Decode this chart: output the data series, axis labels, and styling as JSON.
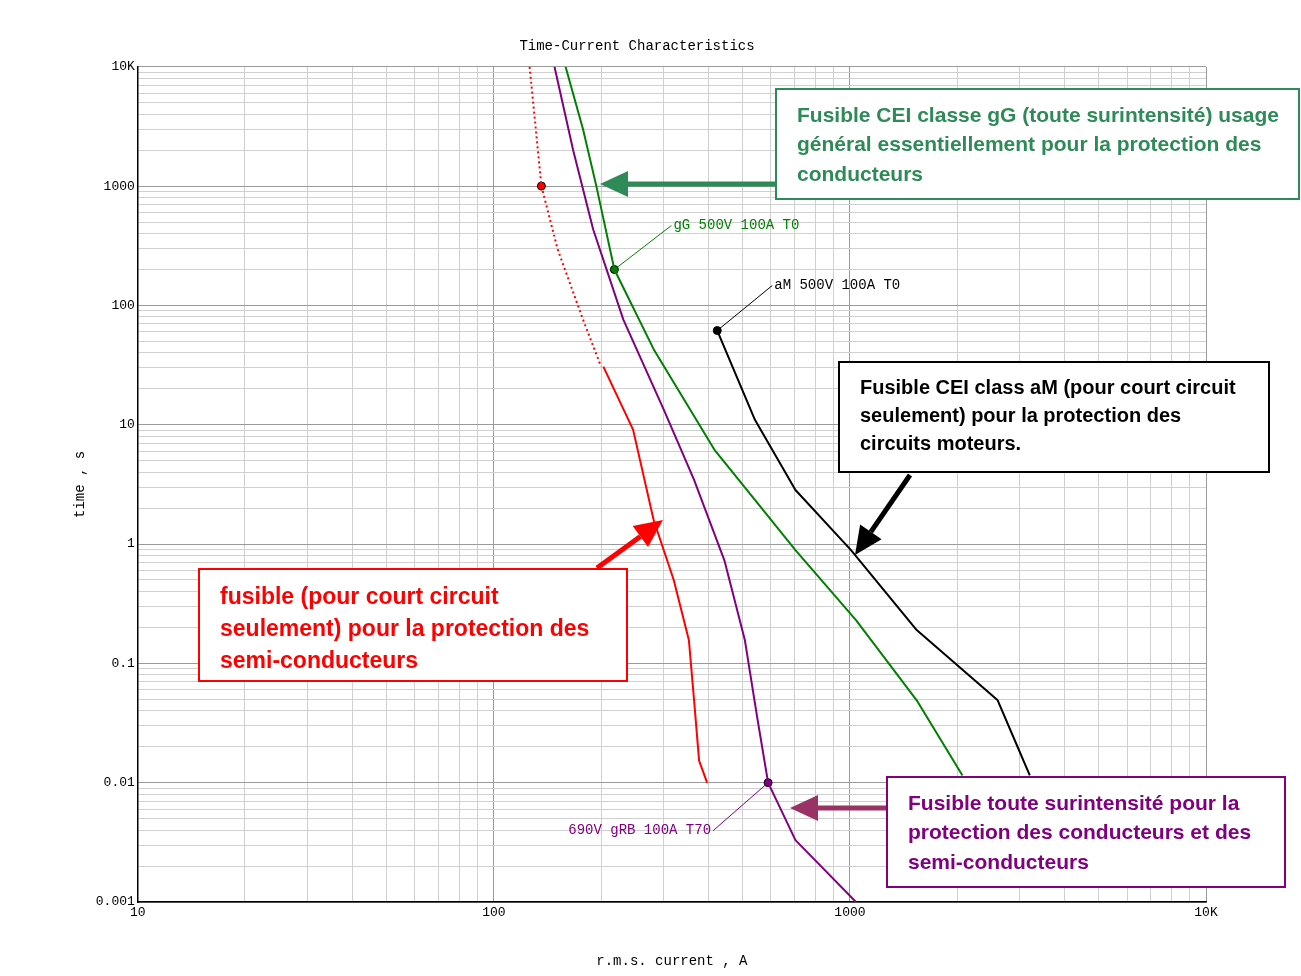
{
  "chart_data": {
    "type": "line",
    "title": "Time-Current Characteristics",
    "xlabel": "r.m.s. current , A",
    "ylabel": "time , s",
    "log": "xy",
    "grid": true,
    "xlim": [
      10,
      10000
    ],
    "ylim": [
      0.001,
      10000
    ],
    "xticks": [
      10,
      {
        "value": 20,
        "label": null
      },
      {
        "value": 30,
        "label": null
      },
      {
        "value": 40,
        "label": null
      },
      {
        "value": 50,
        "label": null
      },
      {
        "value": 60,
        "label": null
      },
      {
        "value": 70,
        "label": null
      },
      {
        "value": 80,
        "label": null
      },
      {
        "value": 90,
        "label": null
      },
      100,
      {
        "value": 200,
        "label": null
      },
      {
        "value": 300,
        "label": null
      },
      {
        "value": 400,
        "label": null
      },
      {
        "value": 500,
        "label": null
      },
      {
        "value": 600,
        "label": null
      },
      {
        "value": 700,
        "label": null
      },
      {
        "value": 800,
        "label": null
      },
      {
        "value": 900,
        "label": null
      },
      1000,
      {
        "value": 2000,
        "label": null
      },
      {
        "value": 3000,
        "label": null
      },
      {
        "value": 4000,
        "label": null
      },
      {
        "value": 5000,
        "label": null
      },
      {
        "value": 6000,
        "label": null
      },
      {
        "value": 7000,
        "label": null
      },
      {
        "value": 8000,
        "label": null
      },
      {
        "value": 9000,
        "label": null
      },
      {
        "value": 10000,
        "label": "10K"
      }
    ],
    "yticks": [
      0.001,
      {
        "value": 0.002,
        "label": null
      },
      {
        "value": 0.003,
        "label": null
      },
      {
        "value": 0.004,
        "label": null
      },
      {
        "value": 0.005,
        "label": null
      },
      {
        "value": 0.006,
        "label": null
      },
      {
        "value": 0.007,
        "label": null
      },
      {
        "value": 0.008,
        "label": null
      },
      {
        "value": 0.009,
        "label": null
      },
      0.01,
      {
        "value": 0.02,
        "label": null
      },
      {
        "value": 0.03,
        "label": null
      },
      {
        "value": 0.04,
        "label": null
      },
      {
        "value": 0.05,
        "label": null
      },
      {
        "value": 0.06,
        "label": null
      },
      {
        "value": 0.07,
        "label": null
      },
      {
        "value": 0.08,
        "label": null
      },
      {
        "value": 0.09,
        "label": null
      },
      0.1,
      {
        "value": 0.2,
        "label": null
      },
      {
        "value": 0.3,
        "label": null
      },
      {
        "value": 0.4,
        "label": null
      },
      {
        "value": 0.5,
        "label": null
      },
      {
        "value": 0.6,
        "label": null
      },
      {
        "value": 0.7,
        "label": null
      },
      {
        "value": 0.8,
        "label": null
      },
      {
        "value": 0.9,
        "label": null
      },
      1,
      {
        "value": 2,
        "label": null
      },
      {
        "value": 3,
        "label": null
      },
      {
        "value": 4,
        "label": null
      },
      {
        "value": 5,
        "label": null
      },
      {
        "value": 6,
        "label": null
      },
      {
        "value": 7,
        "label": null
      },
      {
        "value": 8,
        "label": null
      },
      {
        "value": 9,
        "label": null
      },
      10,
      {
        "value": 20,
        "label": null
      },
      {
        "value": 30,
        "label": null
      },
      {
        "value": 40,
        "label": null
      },
      {
        "value": 50,
        "label": null
      },
      {
        "value": 60,
        "label": null
      },
      {
        "value": 70,
        "label": null
      },
      {
        "value": 80,
        "label": null
      },
      {
        "value": 90,
        "label": null
      },
      100,
      {
        "value": 200,
        "label": null
      },
      {
        "value": 300,
        "label": null
      },
      {
        "value": 400,
        "label": null
      },
      {
        "value": 500,
        "label": null
      },
      {
        "value": 600,
        "label": null
      },
      {
        "value": 700,
        "label": null
      },
      {
        "value": 800,
        "label": null
      },
      {
        "value": 900,
        "label": null
      },
      1000,
      {
        "value": 2000,
        "label": null
      },
      {
        "value": 3000,
        "label": null
      },
      {
        "value": 4000,
        "label": null
      },
      {
        "value": 5000,
        "label": null
      },
      {
        "value": 6000,
        "label": null
      },
      {
        "value": 7000,
        "label": null
      },
      {
        "value": 8000,
        "label": null
      },
      {
        "value": 9000,
        "label": null
      },
      {
        "value": 10000,
        "label": "10K"
      }
    ],
    "series": [
      {
        "type": "line",
        "color": "#008000",
        "marker": "none",
        "line_style": "solid",
        "x": [
          159,
          178,
          194,
          218,
          281,
          416,
          703,
          1040,
          1540,
          2070
        ],
        "values": [
          10000,
          3000,
          1000,
          200,
          43,
          6.2,
          0.89,
          0.23,
          0.049,
          0.0115
        ]
      },
      {
        "type": "line",
        "color": "#800080",
        "marker": "none",
        "line_style": "solid",
        "x": [
          148,
          167,
          190,
          231,
          300,
          365,
          444,
          507,
          551,
          589,
          703,
          1040
        ],
        "values": [
          10000,
          2000,
          435,
          76,
          13.4,
          3.45,
          0.73,
          0.156,
          0.033,
          0.01,
          0.0033,
          0.001
        ]
      },
      {
        "type": "line",
        "color": "#ff0000",
        "marker": "none",
        "line_style": "solid",
        "x": [
          203,
          246,
          281,
          320,
          353,
          365,
          377,
          397
        ],
        "values": [
          30.7,
          9.1,
          1.59,
          0.5,
          0.156,
          0.049,
          0.0153,
          0.01
        ]
      },
      {
        "type": "line",
        "color": "#ff0000",
        "marker": "none",
        "line_style": "dotted",
        "x": [
          126,
          136,
          151,
          178,
          200
        ],
        "values": [
          10000,
          1000,
          296,
          76,
          30.7
        ]
      },
      {
        "type": "line",
        "color": "#000000",
        "marker": "none",
        "line_style": "solid",
        "x": [
          424,
          541,
          703,
          1007,
          1540,
          2600,
          3200
        ],
        "values": [
          61.6,
          11,
          2.84,
          0.89,
          0.19,
          0.049,
          0.0115
        ]
      },
      {
        "type": "scatter",
        "color": "#ff0000",
        "marker": "circle",
        "x": [
          136
        ],
        "values": [
          1000
        ]
      },
      {
        "type": "scatter",
        "color": "#008000",
        "marker": "circle",
        "x": [
          218
        ],
        "values": [
          200
        ]
      },
      {
        "type": "scatter",
        "color": "#000000",
        "marker": "circle",
        "x": [
          424
        ],
        "values": [
          61.6
        ]
      },
      {
        "type": "scatter",
        "color": "#800080",
        "marker": "circle",
        "x": [
          589
        ],
        "values": [
          0.01
        ]
      }
    ],
    "annotations": [
      {
        "text": "gG 500V 100A T0",
        "x": 218,
        "y": 200
      },
      {
        "text": "aM 500V 100A T0",
        "x": 424,
        "y": 61.6
      },
      {
        "text": "690V gRB 100A T70",
        "x": 589,
        "y": 0.01
      },
      "Fusible CEI classe gG (toute surintensité) usage général essentiellement pour la protection des conducteurs",
      "Fusible CEI class aM  (pour court circuit seulement) pour la protection des circuits moteurs.",
      "fusible (pour court circuit seulement)  pour la protection des semi-conducteurs",
      "Fusible toute surintensité pour la protection des conducteurs et des semi-conducteurs"
    ]
  }
}
